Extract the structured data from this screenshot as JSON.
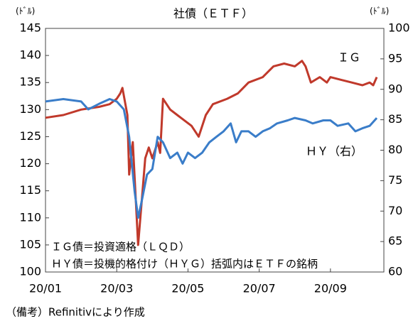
{
  "chart_data": {
    "type": "line",
    "title": "社債（ＥＴＦ）",
    "y_unit": "(ﾄﾞﾙ)",
    "y2_unit": "(ﾄﾞﾙ)",
    "annotations": [
      "ＩＧ",
      "ＨＹ（右）",
      "ＩＧ債＝投資適格（ＬＱＤ）",
      "ＨＹ債＝投機的格付け（ＨＹＧ）括弧内はＥＴＦの銘柄"
    ],
    "footnote": "（備考）Refinitivにより作成",
    "xlim": [
      0,
      9.5
    ],
    "xticks": [
      {
        "value": 0,
        "label": "20/01"
      },
      {
        "value": 2,
        "label": "20/03"
      },
      {
        "value": 4,
        "label": "20/05"
      },
      {
        "value": 6,
        "label": "20/07"
      },
      {
        "value": 8,
        "label": "20/09"
      }
    ],
    "ylim": [
      100,
      145
    ],
    "yticks": [
      100,
      105,
      110,
      115,
      120,
      125,
      130,
      135,
      140,
      145
    ],
    "y2lim": [
      60,
      100
    ],
    "y2ticks": [
      60,
      65,
      70,
      75,
      80,
      85,
      90,
      95,
      100
    ],
    "series": [
      {
        "name": "IG",
        "color": "#c0392b",
        "x": [
          0,
          0.5,
          1,
          1.5,
          1.8,
          2,
          2.1,
          2.16,
          2.3,
          2.35,
          2.45,
          2.6,
          2.7,
          2.8,
          2.9,
          3.0,
          3.15,
          3.22,
          3.3,
          3.5,
          3.7,
          4.1,
          4.3,
          4.5,
          4.7,
          5.1,
          5.4,
          5.7,
          6.1,
          6.4,
          6.7,
          7.0,
          7.2,
          7.3,
          7.45,
          7.7,
          7.9,
          8.0,
          8.3,
          8.6,
          8.9,
          9.1,
          9.2,
          9.3
        ],
        "values": [
          128.5,
          129,
          130,
          130.5,
          131,
          132,
          133,
          134,
          129,
          118,
          124,
          105,
          113,
          121,
          123,
          121,
          124,
          122,
          132,
          130,
          129,
          127,
          125,
          129,
          131,
          132,
          133,
          135,
          136,
          138,
          138.5,
          138,
          139,
          138,
          135,
          136,
          135,
          136,
          135.5,
          135,
          134.5,
          135,
          134.5,
          136
        ]
      },
      {
        "name": "HY",
        "color": "#3a7dc9",
        "axis": "y2",
        "x": [
          0,
          0.5,
          1,
          1.2,
          1.5,
          1.8,
          2,
          2.2,
          2.35,
          2.5,
          2.6,
          2.7,
          2.85,
          3.0,
          3.15,
          3.3,
          3.5,
          3.7,
          3.85,
          4.0,
          4.2,
          4.4,
          4.6,
          4.8,
          5.0,
          5.2,
          5.35,
          5.5,
          5.7,
          5.9,
          6.1,
          6.3,
          6.5,
          6.8,
          7.0,
          7.3,
          7.5,
          7.8,
          8.0,
          8.2,
          8.5,
          8.7,
          8.9,
          9.1,
          9.3
        ],
        "values": [
          88,
          88.4,
          88,
          86.7,
          87.6,
          88.4,
          88,
          86.7,
          82.2,
          73.3,
          68.9,
          71.6,
          76,
          76.9,
          82.2,
          81.3,
          78.7,
          79.6,
          77.8,
          79.6,
          78.7,
          79.6,
          81.3,
          82.2,
          83.1,
          84.4,
          81.3,
          83.1,
          83.1,
          82.2,
          83.1,
          83.6,
          84.4,
          84.9,
          85.3,
          84.9,
          84.4,
          84.9,
          84.9,
          84,
          84.4,
          83.1,
          83.6,
          84,
          85.3
        ]
      }
    ]
  }
}
